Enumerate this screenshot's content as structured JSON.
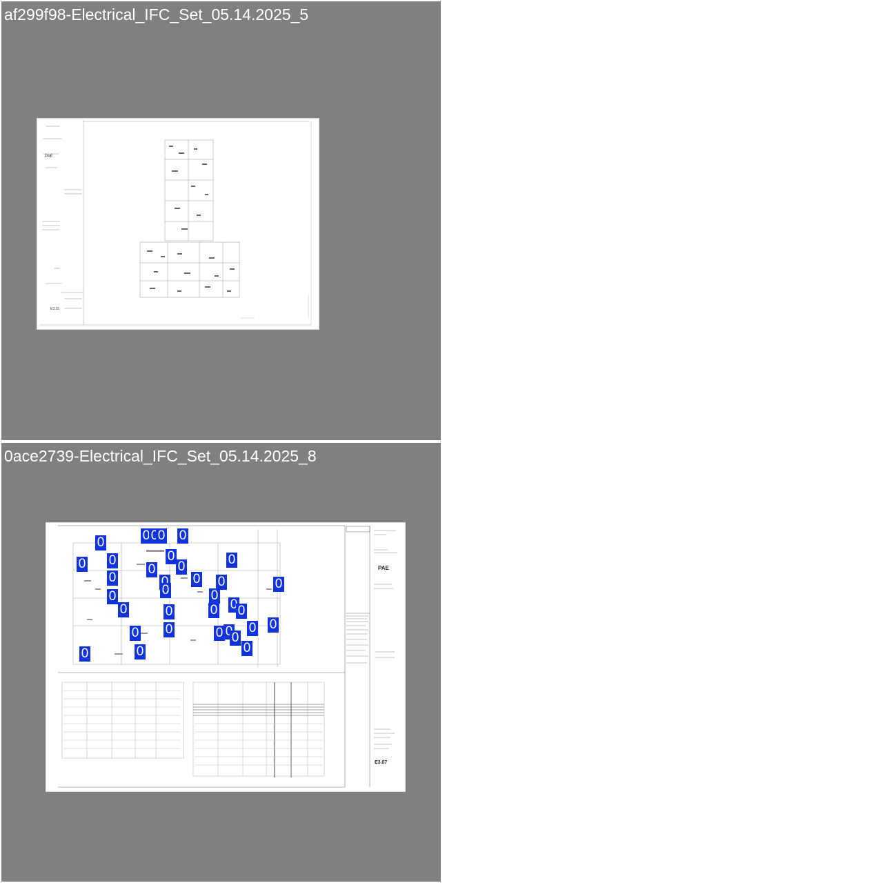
{
  "panels": [
    {
      "title": "af299f98-Electrical_IFC_Set_05.14.2025_5",
      "sheet": {
        "markers": []
      }
    },
    {
      "title": "0ace2739-Electrical_IFC_Set_05.14.2025_8",
      "sheet": {
        "logo": "PAE",
        "sheet_number": "E3.07",
        "markers": [
          "0",
          "0",
          "0",
          "0",
          "0",
          "0",
          "0",
          "0",
          "0",
          "0",
          "0",
          "0",
          "0",
          "0",
          "0",
          "0",
          "0",
          "0",
          "0",
          "0",
          "0",
          "0",
          "0",
          "0",
          "0",
          "0",
          "0",
          "0",
          "0",
          "0",
          "0",
          "0",
          "0",
          "0"
        ]
      }
    }
  ],
  "colors": {
    "panel_bg": "#808080",
    "marker_bg": "#1133dd",
    "marker_text": "#ffffff"
  }
}
